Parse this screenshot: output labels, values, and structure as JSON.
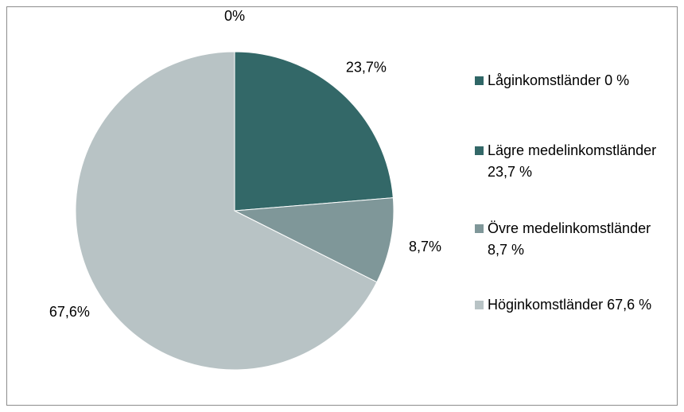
{
  "chart_data": {
    "type": "pie",
    "categories": [
      "Låginkomstländer 0 %",
      "Lägre medelinkomstländer 23,7 %",
      "Övre medelinkomstländer 8,7 %",
      "Höginkomstländer 67,6 %"
    ],
    "values": [
      0,
      23.7,
      8.7,
      67.6
    ],
    "value_labels": [
      "0%",
      "23,7%",
      "8,7%",
      "67,6%"
    ],
    "colors": [
      "#2f6666",
      "#336868",
      "#7f9799",
      "#b8c3c5"
    ],
    "legend": "right"
  }
}
